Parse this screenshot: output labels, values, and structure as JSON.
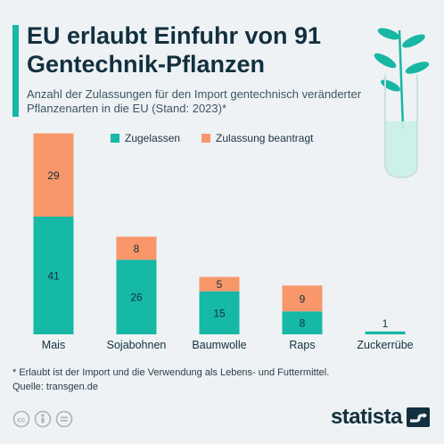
{
  "header": {
    "title": "EU erlaubt Einfuhr von 91 Gentechnik-Pflanzen",
    "subtitle": "Anzahl der Zulassungen für den Import gentechnisch veränderter Pflanzenarten in die EU (Stand: 2023)*"
  },
  "colors": {
    "accent": "#16b8a6",
    "approved": "#16b8a6",
    "pending": "#f8976a",
    "text_dark": "#12303f"
  },
  "chart_data": {
    "type": "bar",
    "stacked": true,
    "categories": [
      "Mais",
      "Sojabohnen",
      "Baumwolle",
      "Raps",
      "Zuckerrübe"
    ],
    "series": [
      {
        "name": "Zugelassen",
        "values": [
          41,
          26,
          15,
          8,
          1
        ]
      },
      {
        "name": "Zulassung beantragt",
        "values": [
          29,
          8,
          5,
          9,
          0
        ]
      }
    ],
    "ylim": [
      0,
      70
    ],
    "grid": false,
    "legend_position": "top"
  },
  "footer": {
    "note": "* Erlaubt ist der Import und die Verwendung als Lebens- und Futtermittel.",
    "source": "Quelle: transgen.de",
    "brand": "statista"
  },
  "icons": [
    "cc-icon",
    "person-icon",
    "equals-icon",
    "statista-logo-icon",
    "plant-tube-icon"
  ]
}
